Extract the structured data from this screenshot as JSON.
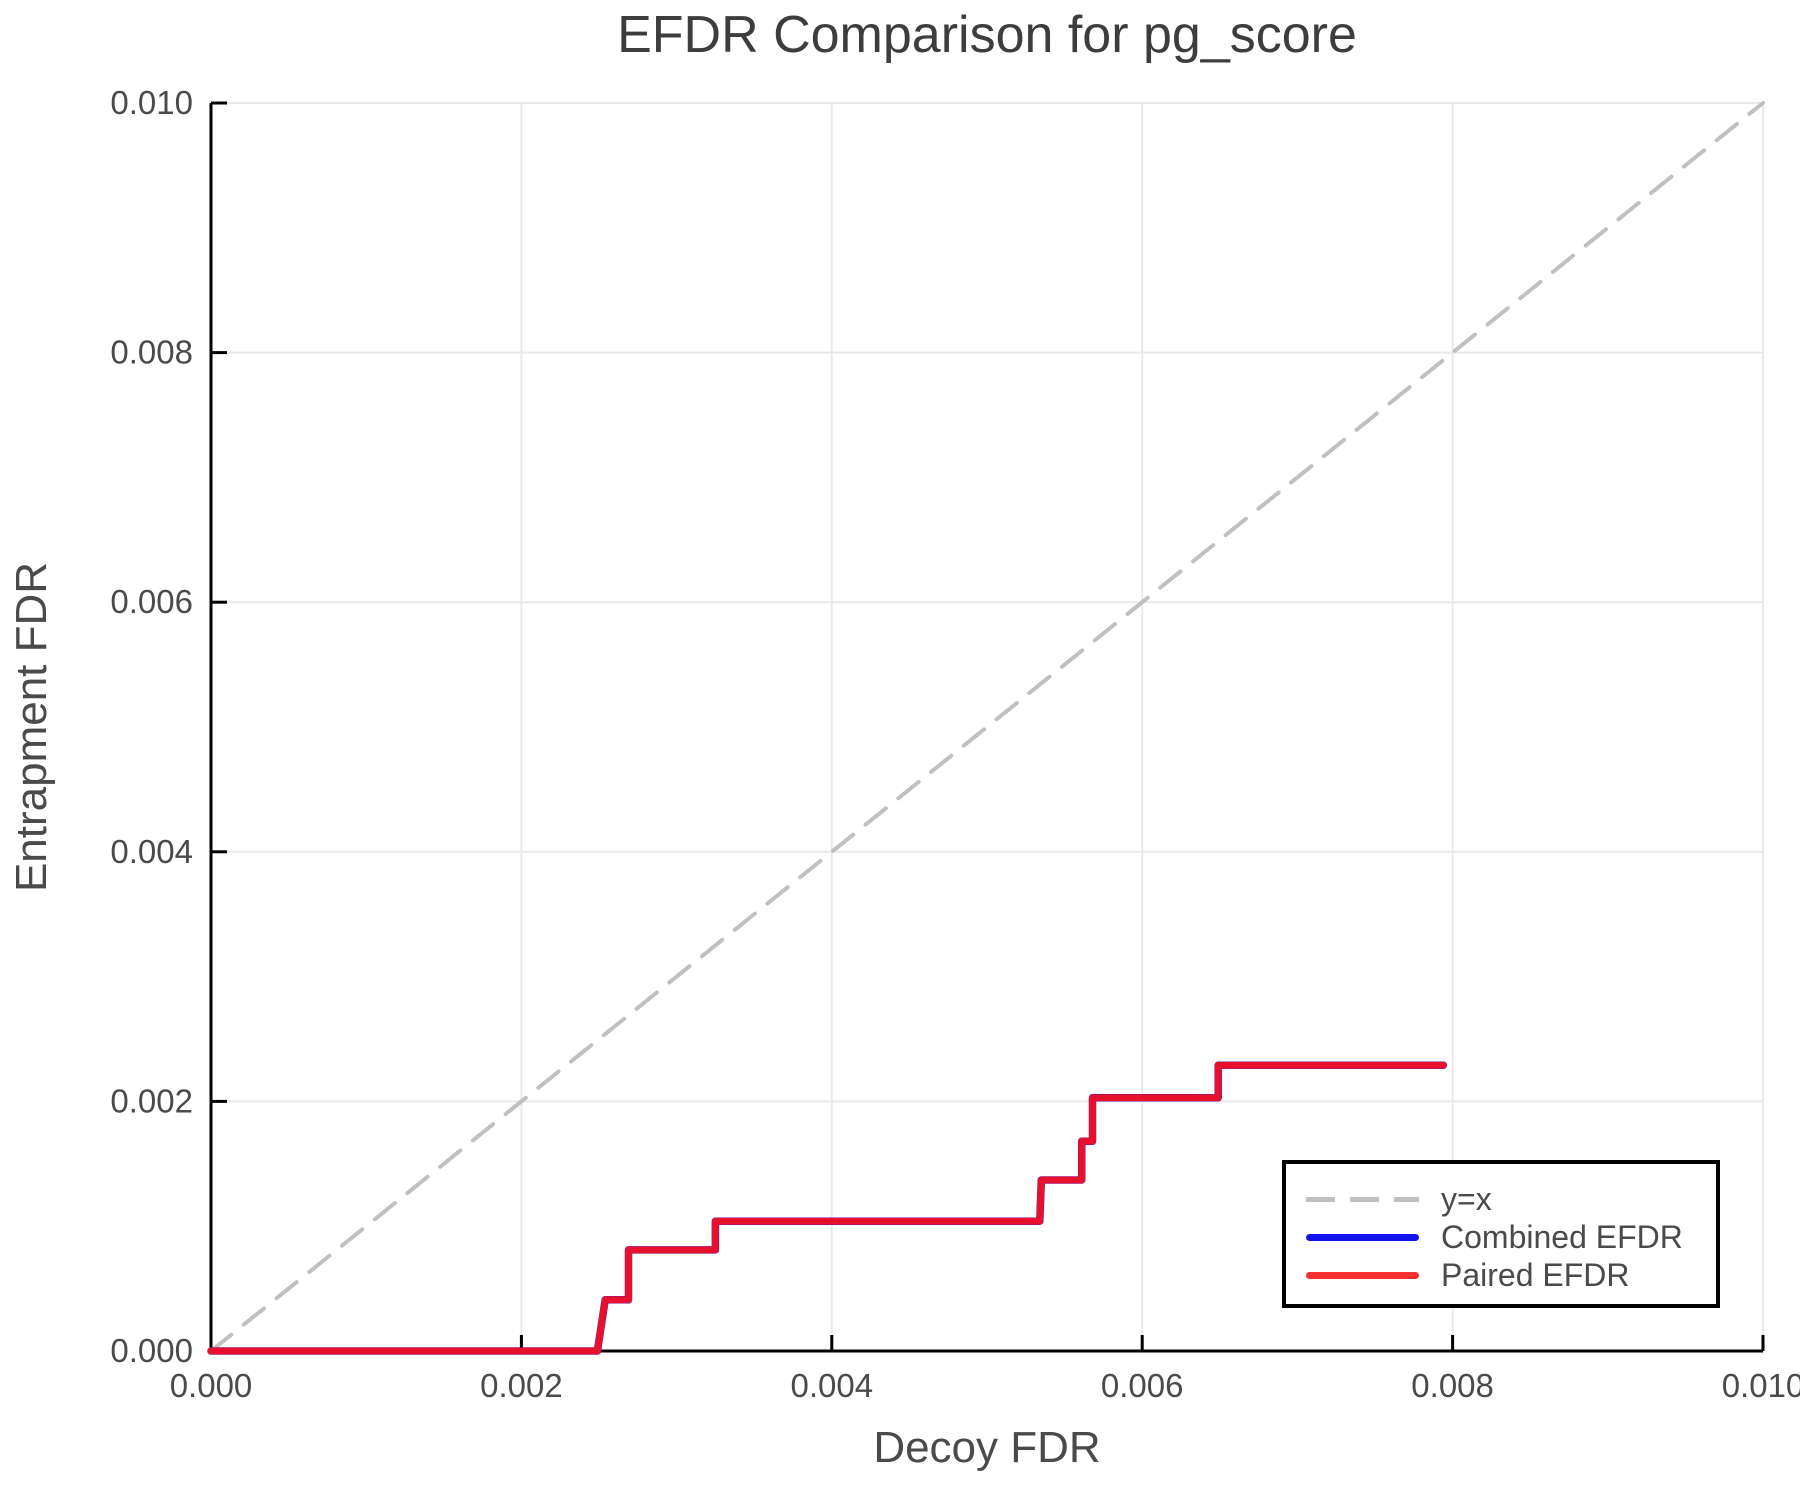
{
  "title": "EFDR Comparison for pg_score",
  "xlabel": "Decoy FDR",
  "ylabel": "Entrapment FDR",
  "colors": {
    "title_text": "#3d3d3d",
    "axis_text": "#4a4a4a",
    "axis_spine": "#000000",
    "gridline": "#e9e9e9",
    "identity_line": "#c0c0c0",
    "combined_efdr": "#1414f0",
    "paired_efdr": "#e8112d",
    "legend_border": "#000000",
    "legend_background": "#ffffff"
  },
  "legend": {
    "position": "bottom-right",
    "items": [
      {
        "label": "y=x",
        "color": "#c0c0c0",
        "style": "dashed"
      },
      {
        "label": "Combined EFDR",
        "color": "#1414f0",
        "style": "solid"
      },
      {
        "label": "Paired EFDR",
        "color": "#fb2f2f",
        "style": "solid"
      }
    ]
  },
  "chart_data": {
    "type": "line",
    "title": "EFDR Comparison for pg_score",
    "xlabel": "Decoy FDR",
    "ylabel": "Entrapment FDR",
    "xlim": [
      0.0,
      0.01
    ],
    "ylim": [
      0.0,
      0.01
    ],
    "grid": true,
    "legend_position": "bottom-right",
    "xticks": {
      "values": [
        0.0,
        0.002,
        0.004,
        0.006,
        0.008,
        0.01
      ],
      "labels": [
        "0.000",
        "0.002",
        "0.004",
        "0.006",
        "0.008",
        "0.010"
      ]
    },
    "yticks": {
      "values": [
        0.0,
        0.002,
        0.004,
        0.006,
        0.008,
        0.01
      ],
      "labels": [
        "0.000",
        "0.002",
        "0.004",
        "0.006",
        "0.008",
        "0.010"
      ]
    },
    "series": [
      {
        "name": "y=x",
        "color": "#c0c0c0",
        "style": "dashed",
        "width": 4,
        "points": [
          [
            0.0,
            0.0
          ],
          [
            0.01,
            0.01
          ]
        ]
      },
      {
        "name": "Combined EFDR",
        "color": "#1414f0",
        "style": "solid",
        "width": 7.5,
        "points": [
          [
            0.0,
            0.0
          ],
          [
            0.00249,
            0.0
          ],
          [
            0.00254,
            0.00041
          ],
          [
            0.00269,
            0.00041
          ],
          [
            0.00269,
            0.00081
          ],
          [
            0.00325,
            0.00081
          ],
          [
            0.00325,
            0.00104
          ],
          [
            0.00534,
            0.00104
          ],
          [
            0.00535,
            0.00137
          ],
          [
            0.00561,
            0.00137
          ],
          [
            0.00561,
            0.00168
          ],
          [
            0.00568,
            0.00168
          ],
          [
            0.00568,
            0.00203
          ],
          [
            0.00649,
            0.00203
          ],
          [
            0.00649,
            0.00229
          ],
          [
            0.00794,
            0.00229
          ]
        ]
      },
      {
        "name": "Paired EFDR",
        "color": "#e8112d",
        "style": "solid",
        "width": 7,
        "points": [
          [
            0.0,
            0.0
          ],
          [
            0.00249,
            0.0
          ],
          [
            0.00254,
            0.00041
          ],
          [
            0.00269,
            0.00041
          ],
          [
            0.00269,
            0.00081
          ],
          [
            0.00325,
            0.00081
          ],
          [
            0.00325,
            0.00104
          ],
          [
            0.00534,
            0.00104
          ],
          [
            0.00535,
            0.00137
          ],
          [
            0.00561,
            0.00137
          ],
          [
            0.00561,
            0.00168
          ],
          [
            0.00568,
            0.00168
          ],
          [
            0.00568,
            0.00203
          ],
          [
            0.00649,
            0.00203
          ],
          [
            0.00649,
            0.00229
          ],
          [
            0.00794,
            0.00229
          ]
        ]
      }
    ]
  }
}
